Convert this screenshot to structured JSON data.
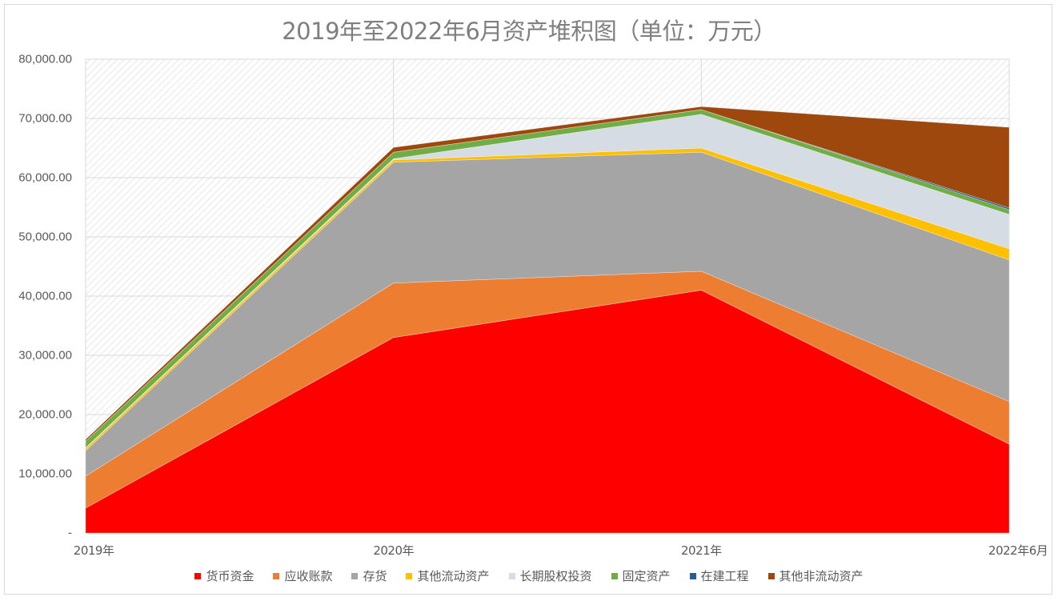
{
  "chart_data": {
    "type": "area",
    "stacked": true,
    "title": "2019年至2022年6月资产堆积图（单位：万元）",
    "xlabel": "",
    "ylabel": "",
    "categories": [
      "2019年",
      "2020年",
      "2021年",
      "2022年6月"
    ],
    "ylim": [
      0,
      80000
    ],
    "yticks": [
      "-",
      "10,000.00",
      "20,000.00",
      "30,000.00",
      "40,000.00",
      "50,000.00",
      "60,000.00",
      "70,000.00",
      "80,000.00"
    ],
    "ytick_values": [
      0,
      10000,
      20000,
      30000,
      40000,
      50000,
      60000,
      70000,
      80000
    ],
    "grid": true,
    "legend_position": "bottom",
    "series": [
      {
        "name": "货币资金",
        "color": "#ff0000",
        "values": [
          4200,
          33000,
          41000,
          15000
        ]
      },
      {
        "name": "应收账款",
        "color": "#ed7d31",
        "values": [
          5400,
          9200,
          3200,
          7200
        ]
      },
      {
        "name": "存货",
        "color": "#a5a5a5",
        "values": [
          4300,
          20400,
          20100,
          23900
        ]
      },
      {
        "name": "其他流动资产",
        "color": "#ffc000",
        "values": [
          400,
          400,
          700,
          1900
        ]
      },
      {
        "name": "长期股权投资",
        "color": "#d6dce4",
        "values": [
          100,
          200,
          5700,
          5800
        ]
      },
      {
        "name": "固定资产",
        "color": "#70ad47",
        "values": [
          1100,
          1100,
          800,
          800
        ]
      },
      {
        "name": "在建工程",
        "color": "#255e91",
        "values": [
          0,
          0,
          0,
          300
        ]
      },
      {
        "name": "其他非流动资产",
        "color": "#9e480e",
        "values": [
          300,
          800,
          500,
          13600
        ]
      }
    ]
  }
}
